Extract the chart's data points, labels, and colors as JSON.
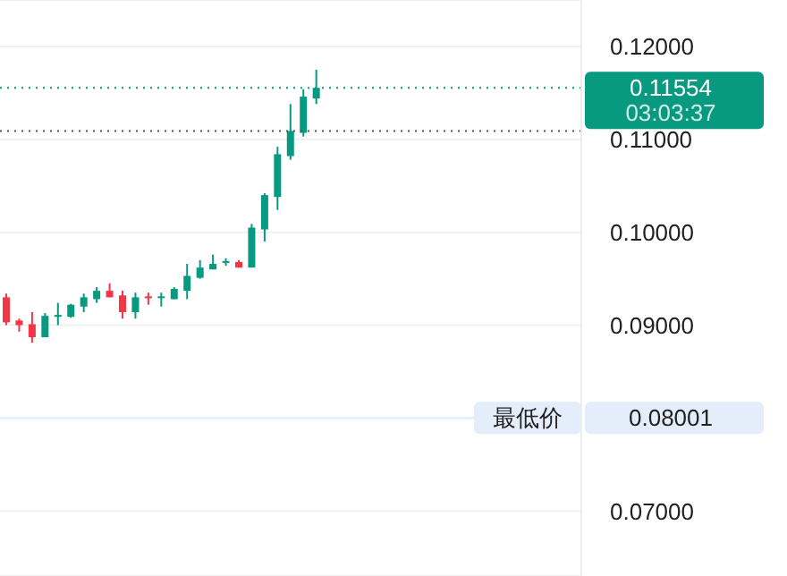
{
  "chart_data": {
    "type": "candlestick",
    "categories": [
      null,
      null,
      null,
      null,
      null,
      null,
      null,
      null,
      null,
      null,
      null,
      null,
      null,
      null,
      null,
      null,
      null,
      null,
      null,
      null,
      null,
      null,
      null,
      null,
      null,
      null,
      null,
      null,
      null,
      null,
      null,
      null,
      null,
      null,
      null,
      null,
      null,
      null,
      null,
      null,
      null,
      null,
      null,
      null,
      null
    ],
    "ohlc": [
      [
        0.093,
        0.0934,
        0.09,
        0.0903
      ],
      [
        0.0905,
        0.0907,
        0.0893,
        0.09
      ],
      [
        0.0901,
        0.0914,
        0.0881,
        0.0887
      ],
      [
        0.0887,
        0.0913,
        0.0887,
        0.091
      ],
      [
        0.0909,
        0.0924,
        0.09,
        0.0911
      ],
      [
        0.0909,
        0.0923,
        0.0908,
        0.0922
      ],
      [
        0.092,
        0.0934,
        0.0914,
        0.093
      ],
      [
        0.0928,
        0.0941,
        0.0924,
        0.0937
      ],
      [
        0.0937,
        0.0945,
        0.093,
        0.093
      ],
      [
        0.0932,
        0.0937,
        0.0907,
        0.0914
      ],
      [
        0.0914,
        0.0935,
        0.0907,
        0.093
      ],
      [
        0.0931,
        0.0935,
        0.0922,
        0.0929
      ],
      [
        0.093,
        0.0935,
        0.092,
        0.0931
      ],
      [
        0.0928,
        0.0941,
        0.0928,
        0.0939
      ],
      [
        0.0937,
        0.0966,
        0.0928,
        0.0953
      ],
      [
        0.0951,
        0.097,
        0.095,
        0.0962
      ],
      [
        0.096,
        0.0976,
        0.096,
        0.0966
      ],
      [
        0.0968,
        0.0972,
        0.0964,
        0.0969
      ],
      [
        0.0968,
        0.097,
        0.0962,
        0.0962
      ],
      [
        0.0962,
        0.1009,
        0.0962,
        0.1005
      ],
      [
        0.1003,
        0.1042,
        0.099,
        0.104
      ],
      [
        0.1038,
        0.1092,
        0.1024,
        0.1084
      ],
      [
        0.1082,
        0.1138,
        0.1078,
        0.1109
      ],
      [
        0.1107,
        0.1154,
        0.1103,
        0.1146
      ],
      [
        0.1144,
        0.1175,
        0.1138,
        0.11554
      ],
      null,
      null,
      null,
      null,
      null,
      null,
      null,
      null,
      null,
      null,
      null,
      null,
      null,
      null,
      null,
      null,
      null,
      null,
      null,
      null
    ],
    "colors": [
      "#f23645",
      "#f23645",
      "#f23645",
      "#089981",
      "#089981",
      "#089981",
      "#089981",
      "#089981",
      "#f23645",
      "#f23645",
      "#089981",
      "#f23645",
      "#089981",
      "#089981",
      "#089981",
      "#089981",
      "#089981",
      "#089981",
      "#f23645",
      "#089981",
      "#089981",
      "#089981",
      "#089981",
      "#089981",
      "#089981",
      null,
      null,
      null,
      null,
      null,
      null,
      null,
      null,
      null,
      null,
      null,
      null,
      null,
      null,
      null,
      null,
      null,
      null,
      null,
      null
    ],
    "ylim": [
      0.063,
      0.125
    ],
    "yticks": [
      {
        "value": 0.07,
        "label": "0.07000"
      },
      {
        "value": 0.08,
        "label": null
      },
      {
        "value": 0.09,
        "label": "0.09000"
      },
      {
        "value": 0.1,
        "label": "0.10000"
      },
      {
        "value": 0.11,
        "label": "0.11000"
      },
      {
        "value": 0.12,
        "label": "0.12000"
      }
    ],
    "tick_labels": "y",
    "grid": "y",
    "ref_lines": [
      {
        "axis": "y",
        "value": 0.11554,
        "label": "0.11554 03:03:37",
        "color": "#089981",
        "line_style": "dotted"
      },
      {
        "axis": "y",
        "value": 0.1109,
        "color": "#555555",
        "line_style": "dotted"
      },
      {
        "axis": "y",
        "value": 0.08001,
        "label": "最低价 0.08001",
        "color": "#e3eefa"
      }
    ]
  }
}
